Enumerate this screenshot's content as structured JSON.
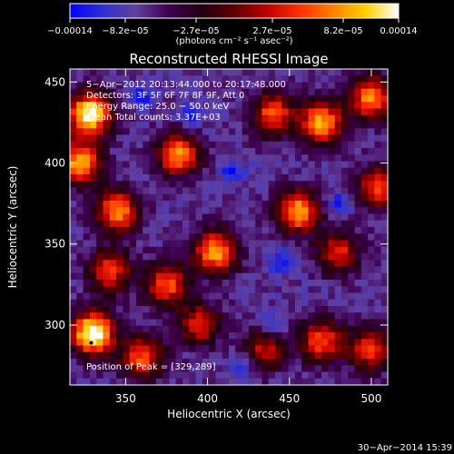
{
  "colorbar": {
    "tick_labels": [
      "−0.00014",
      "−8.2e−05",
      "−2.7e−05",
      "2.7e−05",
      "8.2e−05",
      "0.00014"
    ],
    "range": [
      -0.00014,
      0.00014
    ],
    "stops": [
      "#0000ff",
      "#3030d0",
      "#6040a0",
      "#400050",
      "#200010",
      "#600000",
      "#c00000",
      "#ff3000",
      "#ff8000",
      "#ffd000",
      "#ffffff"
    ]
  },
  "chart_data": {
    "type": "heatmap",
    "title": "Reconstructed RHESSI Image",
    "xlabel": "Heliocentric X (arcsec)",
    "ylabel": "Heliocentric Y (arcsec)",
    "unit_label": "(photons cm⁻² s⁻¹ asec⁻²)",
    "xlim": [
      316,
      510
    ],
    "ylim": [
      263,
      458
    ],
    "xticks": [
      "350",
      "400",
      "450",
      "500"
    ],
    "xtick_values": [
      350,
      400,
      450,
      500
    ],
    "yticks": [
      "300",
      "350",
      "400",
      "450"
    ],
    "ytick_values": [
      300,
      350,
      400,
      450
    ],
    "annotations": [
      "5−Apr−2012 20:13:44.000 to 20:17:48.000",
      "Detectors: 3F 5F 6F 7F 8F 9F, Att 0",
      "Energy Range: 25.0 − 50.0 keV",
      "Clean     Total counts: 3.37E+03"
    ],
    "peak_label": "Position of Peak = [329,289]",
    "peak": [
      329,
      289
    ],
    "bright_regions": [
      {
        "x": 328,
        "y": 430,
        "level": 0.95
      },
      {
        "x": 322,
        "y": 400,
        "level": 0.75
      },
      {
        "x": 345,
        "y": 370,
        "level": 0.7
      },
      {
        "x": 340,
        "y": 333,
        "level": 0.55
      },
      {
        "x": 330,
        "y": 295,
        "level": 1.0
      },
      {
        "x": 360,
        "y": 280,
        "level": 0.6
      },
      {
        "x": 382,
        "y": 405,
        "level": 0.7
      },
      {
        "x": 405,
        "y": 345,
        "level": 0.75
      },
      {
        "x": 375,
        "y": 325,
        "level": 0.6
      },
      {
        "x": 395,
        "y": 300,
        "level": 0.5
      },
      {
        "x": 440,
        "y": 430,
        "level": 0.6
      },
      {
        "x": 470,
        "y": 425,
        "level": 0.75
      },
      {
        "x": 500,
        "y": 440,
        "level": 0.7
      },
      {
        "x": 455,
        "y": 370,
        "level": 0.75
      },
      {
        "x": 505,
        "y": 385,
        "level": 0.6
      },
      {
        "x": 480,
        "y": 345,
        "level": 0.5
      },
      {
        "x": 470,
        "y": 290,
        "level": 0.6
      },
      {
        "x": 435,
        "y": 285,
        "level": 0.45
      },
      {
        "x": 500,
        "y": 285,
        "level": 0.55
      }
    ],
    "dark_regions": [
      {
        "x": 415,
        "y": 395
      },
      {
        "x": 445,
        "y": 340
      },
      {
        "x": 440,
        "y": 300
      },
      {
        "x": 390,
        "y": 430
      },
      {
        "x": 360,
        "y": 440
      },
      {
        "x": 480,
        "y": 375
      },
      {
        "x": 420,
        "y": 275
      }
    ]
  },
  "footer": {
    "timestamp": "30−Apr−2014 15:39"
  }
}
